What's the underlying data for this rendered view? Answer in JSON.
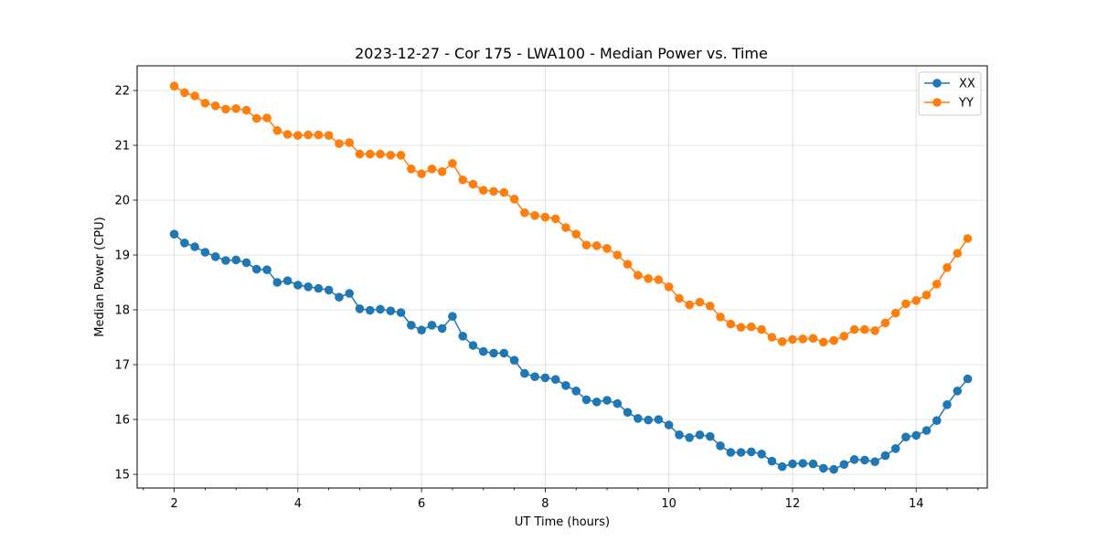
{
  "chart_data": {
    "type": "line",
    "title": "2023-12-27 - Cor 175 - LWA100 - Median Power vs. Time",
    "xlabel": "UT Time (hours)",
    "ylabel": "Median Power (CPU)",
    "xlim": [
      1.4,
      15.15
    ],
    "ylim": [
      14.75,
      22.45
    ],
    "xticks": [
      2,
      4,
      6,
      8,
      10,
      12,
      14
    ],
    "xtick_labels": [
      "2",
      "4",
      "6",
      "8",
      "10",
      "12",
      "14"
    ],
    "x_minor_step": 0.5,
    "yticks": [
      15,
      16,
      17,
      18,
      19,
      20,
      21,
      22
    ],
    "ytick_labels": [
      "15",
      "16",
      "17",
      "18",
      "19",
      "20",
      "21",
      "22"
    ],
    "grid": true,
    "legend_position": "top-right",
    "x": [
      2.0,
      2.167,
      2.333,
      2.5,
      2.667,
      2.833,
      3.0,
      3.167,
      3.333,
      3.5,
      3.667,
      3.833,
      4.0,
      4.167,
      4.333,
      4.5,
      4.667,
      4.833,
      5.0,
      5.167,
      5.333,
      5.5,
      5.667,
      5.833,
      6.0,
      6.167,
      6.333,
      6.5,
      6.667,
      6.833,
      7.0,
      7.167,
      7.333,
      7.5,
      7.667,
      7.833,
      8.0,
      8.167,
      8.333,
      8.5,
      8.667,
      8.833,
      9.0,
      9.167,
      9.333,
      9.5,
      9.667,
      9.833,
      10.0,
      10.167,
      10.333,
      10.5,
      10.667,
      10.833,
      11.0,
      11.167,
      11.333,
      11.5,
      11.667,
      11.833,
      12.0,
      12.167,
      12.333,
      12.5,
      12.667,
      12.833,
      13.0,
      13.167,
      13.333,
      13.5,
      13.667,
      13.833,
      14.0,
      14.167,
      14.333,
      14.5,
      14.667,
      14.833
    ],
    "series": [
      {
        "name": "XX",
        "color": "#1f77b4",
        "values": [
          19.38,
          19.22,
          19.15,
          19.05,
          18.97,
          18.9,
          18.91,
          18.86,
          18.74,
          18.73,
          18.5,
          18.53,
          18.45,
          18.42,
          18.39,
          18.36,
          18.23,
          18.3,
          18.02,
          17.99,
          18.01,
          17.98,
          17.95,
          17.72,
          17.63,
          17.72,
          17.66,
          17.88,
          17.52,
          17.35,
          17.24,
          17.21,
          17.21,
          17.08,
          16.84,
          16.78,
          16.76,
          16.73,
          16.62,
          16.52,
          16.36,
          16.32,
          16.35,
          16.29,
          16.13,
          16.02,
          15.99,
          16.0,
          15.9,
          15.72,
          15.67,
          15.72,
          15.69,
          15.52,
          15.4,
          15.4,
          15.41,
          15.37,
          15.24,
          15.14,
          15.19,
          15.2,
          15.19,
          15.11,
          15.09,
          15.18,
          15.27,
          15.26,
          15.23,
          15.34,
          15.47,
          15.68,
          15.71,
          15.8,
          15.98,
          16.27,
          16.52,
          16.74
        ]
      },
      {
        "name": "YY",
        "color": "#ff7f0e",
        "values": [
          22.08,
          21.96,
          21.9,
          21.77,
          21.72,
          21.66,
          21.67,
          21.64,
          21.49,
          21.5,
          21.27,
          21.2,
          21.18,
          21.19,
          21.19,
          21.18,
          21.03,
          21.05,
          20.84,
          20.84,
          20.84,
          20.82,
          20.82,
          20.57,
          20.48,
          20.57,
          20.52,
          20.67,
          20.37,
          20.29,
          20.18,
          20.16,
          20.14,
          20.02,
          19.77,
          19.72,
          19.69,
          19.66,
          19.5,
          19.38,
          19.18,
          19.17,
          19.12,
          19.0,
          18.83,
          18.63,
          18.57,
          18.55,
          18.42,
          18.21,
          18.09,
          18.14,
          18.07,
          17.87,
          17.74,
          17.68,
          17.69,
          17.64,
          17.5,
          17.42,
          17.46,
          17.47,
          17.48,
          17.41,
          17.44,
          17.52,
          17.64,
          17.64,
          17.62,
          17.76,
          17.94,
          18.11,
          18.17,
          18.27,
          18.47,
          18.77,
          19.03,
          19.3
        ]
      }
    ]
  }
}
